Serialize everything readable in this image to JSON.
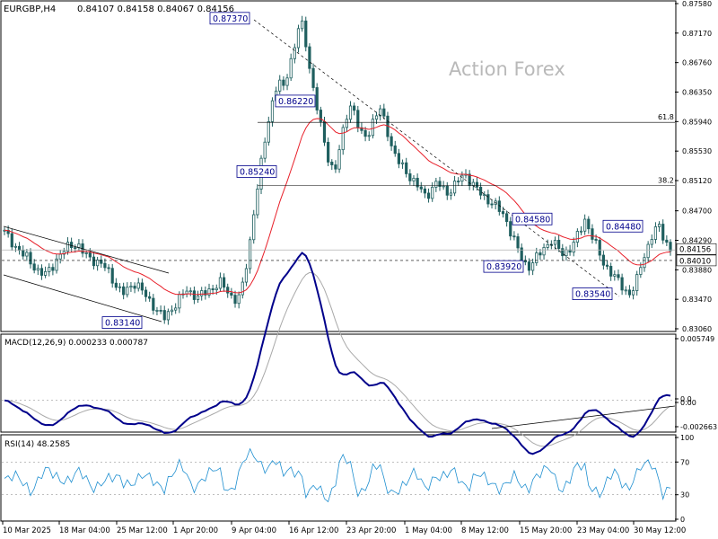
{
  "header": {
    "symbol": "EURGBP,H4",
    "ohlc": "0.84107 0.84158 0.84067 0.84156"
  },
  "watermark": "Action Forex",
  "colors": {
    "candle": "#1f5f5f",
    "ma": "#e8202a",
    "macd": "#00008b",
    "signal": "#a9a9a9",
    "rsi": "#1f8fd0",
    "label_border": "#00008b",
    "panel_border": "#000000",
    "price_box_bg": "#ffffff",
    "current_box_bg": "#ffffff"
  },
  "chart_data": {
    "type": "candlestick",
    "price_panel": {
      "y_ticks": [
        "0.87580",
        "0.87170",
        "0.86760",
        "0.86350",
        "0.85940",
        "0.85530",
        "0.85120",
        "0.84700",
        "0.84290",
        "0.83880",
        "0.83470",
        "0.83060"
      ],
      "ylim": [
        0.8306,
        0.8758
      ],
      "current_price": "0.84156",
      "support_level": "0.84010",
      "fib_levels": [
        {
          "label": "61.8",
          "price": 0.8593
        },
        {
          "label": "38.2",
          "price": 0.8505
        }
      ],
      "point_labels": [
        {
          "text": "0.87370",
          "price": 0.8737
        },
        {
          "text": "0.86220",
          "price": 0.8622
        },
        {
          "text": "0.85240",
          "price": 0.8524
        },
        {
          "text": "0.84580",
          "price": 0.8458
        },
        {
          "text": "0.84480",
          "price": 0.8448
        },
        {
          "text": "0.83920",
          "price": 0.8392
        },
        {
          "text": "0.83540",
          "price": 0.8354
        },
        {
          "text": "0.83140",
          "price": 0.8314
        }
      ]
    },
    "macd_panel": {
      "title": "MACD(12,26,9) 0.000233 0.000787",
      "y_ticks": [
        "0.005749",
        "0.0",
        "0.00",
        "-0.002663"
      ],
      "ylim": [
        -0.002663,
        0.005749
      ]
    },
    "rsi_panel": {
      "title": "RSI(14) 48.2585",
      "y_ticks": [
        "100",
        "70",
        "30",
        "0"
      ],
      "levels": [
        70,
        30
      ]
    },
    "x_ticks": [
      "10 Mar 2025",
      "18 Mar 04:00",
      "25 Mar 12:00",
      "1 Apr 20:00",
      "9 Apr 04:00",
      "16 Apr 12:00",
      "23 Apr 20:00",
      "1 May 04:00",
      "8 May 12:00",
      "15 May 20:00",
      "23 May 04:00",
      "30 May 12:00"
    ],
    "closes": [
      0.844,
      0.843,
      0.842,
      0.841,
      0.8405,
      0.8395,
      0.8385,
      0.838,
      0.839,
      0.84,
      0.841,
      0.842,
      0.8425,
      0.842,
      0.841,
      0.8405,
      0.84,
      0.8395,
      0.839,
      0.8375,
      0.836,
      0.8355,
      0.8365,
      0.837,
      0.836,
      0.835,
      0.834,
      0.833,
      0.832,
      0.833,
      0.834,
      0.835,
      0.836,
      0.8355,
      0.835,
      0.8355,
      0.836,
      0.8365,
      0.837,
      0.836,
      0.835,
      0.8345,
      0.837,
      0.842,
      0.848,
      0.853,
      0.858,
      0.862,
      0.865,
      0.864,
      0.867,
      0.87,
      0.8737,
      0.87,
      0.865,
      0.861,
      0.857,
      0.854,
      0.8524,
      0.856,
      0.86,
      0.8622,
      0.859,
      0.857,
      0.858,
      0.86,
      0.861,
      0.859,
      0.856,
      0.854,
      0.853,
      0.852,
      0.851,
      0.85,
      0.849,
      0.85,
      0.851,
      0.85,
      0.8495,
      0.8505,
      0.8515,
      0.852,
      0.851,
      0.85,
      0.849,
      0.8485,
      0.848,
      0.847,
      0.846,
      0.844,
      0.842,
      0.84,
      0.8392,
      0.84,
      0.841,
      0.842,
      0.843,
      0.842,
      0.841,
      0.8415,
      0.8425,
      0.844,
      0.8458,
      0.844,
      0.842,
      0.84,
      0.839,
      0.838,
      0.837,
      0.836,
      0.8354,
      0.837,
      0.84,
      0.842,
      0.844,
      0.8448,
      0.843,
      0.8416
    ]
  }
}
